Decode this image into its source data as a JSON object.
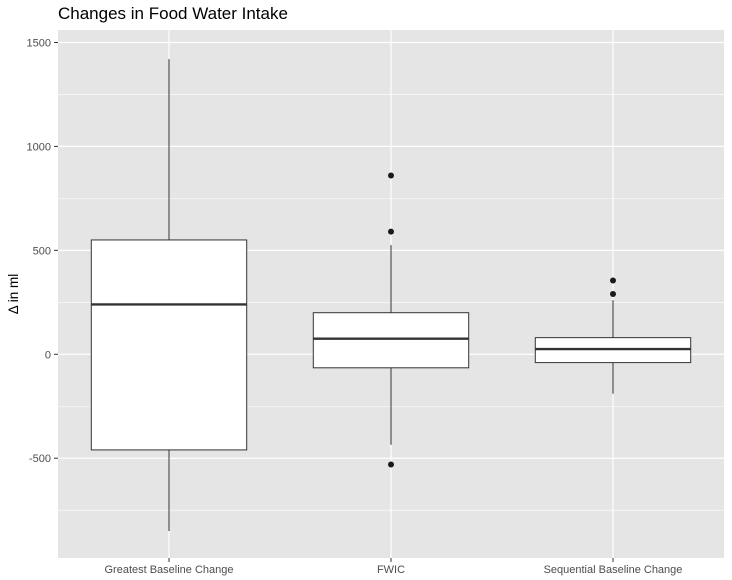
{
  "chart_data": {
    "type": "boxplot",
    "title": "Changes in Food Water Intake",
    "xlabel": "",
    "ylabel": "Δ in ml",
    "categories": [
      "Greatest Baseline Change",
      "FWIC",
      "Sequential Baseline Change"
    ],
    "ylim": [
      -980,
      1560
    ],
    "y_ticks": [
      -500,
      0,
      500,
      1000,
      1500
    ],
    "y_minor_ticks": [
      -750,
      -250,
      250,
      750,
      1250
    ],
    "grid": true,
    "boxes": [
      {
        "category": "Greatest Baseline Change",
        "whisker_low": -850,
        "q1": -460,
        "median": 240,
        "q3": 550,
        "whisker_high": 1420,
        "outliers": []
      },
      {
        "category": "FWIC",
        "whisker_low": -435,
        "q1": -65,
        "median": 75,
        "q3": 200,
        "whisker_high": 525,
        "outliers": [
          860,
          590,
          -530
        ]
      },
      {
        "category": "Sequential Baseline Change",
        "whisker_low": -190,
        "q1": -40,
        "median": 25,
        "q3": 80,
        "whisker_high": 260,
        "outliers": [
          355,
          290
        ]
      }
    ],
    "colors": {
      "panel": "#e5e5e5",
      "grid": "#ffffff",
      "box_fill": "#ffffff",
      "box_line": "#333333",
      "point": "#1a1a1a",
      "tick": "#333333"
    }
  }
}
